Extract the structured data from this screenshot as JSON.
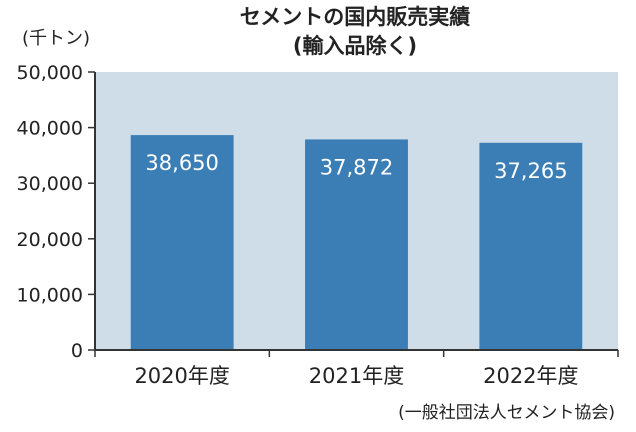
{
  "chart_data": {
    "type": "bar",
    "title": "セメントの国内販売実績",
    "subtitle": "(輸入品除く)",
    "ylabel": "(千トン)",
    "categories": [
      "2020年度",
      "2021年度",
      "2022年度"
    ],
    "values": [
      38650,
      37872,
      37265
    ],
    "value_labels": [
      "38,650",
      "37,872",
      "37,265"
    ],
    "ylim": [
      0,
      50000
    ],
    "yticks": [
      0,
      10000,
      20000,
      30000,
      40000,
      50000
    ],
    "ytick_labels": [
      "0",
      "10,000",
      "20,000",
      "30,000",
      "40,000",
      "50,000"
    ],
    "grid": false,
    "source": "(一般社団法人セメント協会)",
    "colors": {
      "bar": "#3a7eb5",
      "plot_background": "#cfdde8",
      "axis": "#333333"
    }
  }
}
